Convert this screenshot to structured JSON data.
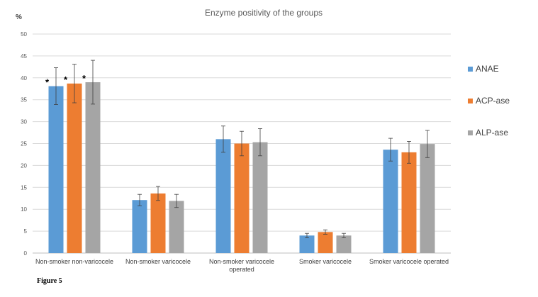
{
  "chart_data": {
    "type": "bar",
    "title": "Enzyme positivity of the groups",
    "ylabel": "%",
    "xlabel": "",
    "ylim": [
      0,
      50
    ],
    "yticks": [
      0,
      5,
      10,
      15,
      20,
      25,
      30,
      35,
      40,
      45,
      50
    ],
    "grid": true,
    "legend_position": "right",
    "categories": [
      "Non-smoker non-varicocele",
      "Non-smoker varicocele",
      "Non-smoker varicocele operated",
      "Smoker varicocele",
      "Smoker varicocele operated"
    ],
    "series": [
      {
        "name": "ANAE",
        "color": "#5b9bd5",
        "values": [
          38.1,
          12.1,
          26.0,
          4.0,
          23.6
        ],
        "errors": [
          4.2,
          1.3,
          3.0,
          0.5,
          2.6
        ],
        "annotations": [
          "*",
          "",
          "",
          "",
          ""
        ]
      },
      {
        "name": "ACP-ase",
        "color": "#ed7d31",
        "values": [
          38.7,
          13.6,
          25.0,
          4.8,
          23.0
        ],
        "errors": [
          4.4,
          1.6,
          2.8,
          0.5,
          2.5
        ],
        "annotations": [
          "*",
          "",
          "",
          "",
          ""
        ]
      },
      {
        "name": "ALP-ase",
        "color": "#a5a5a5",
        "values": [
          39.0,
          11.9,
          25.3,
          4.0,
          24.9
        ],
        "errors": [
          5.0,
          1.5,
          3.1,
          0.5,
          3.1
        ],
        "annotations": [
          "*",
          "",
          "",
          "",
          ""
        ]
      }
    ]
  },
  "figure_caption": "Figure 5"
}
